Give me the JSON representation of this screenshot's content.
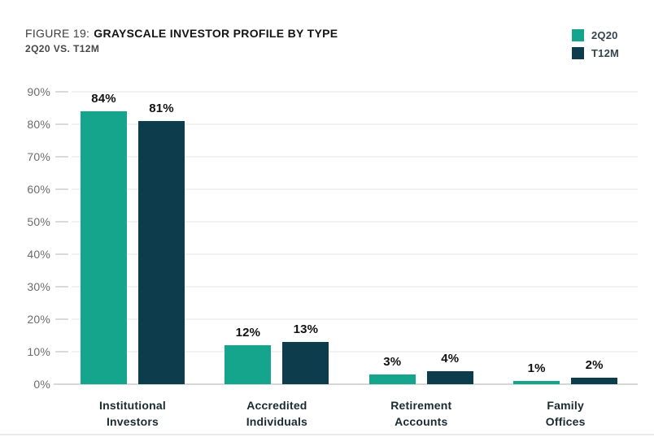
{
  "figure": {
    "label": "FIGURE 19:",
    "title": "GRAYSCALE INVESTOR PROFILE BY TYPE",
    "subtitle": "2Q20 VS. T12M"
  },
  "colors": {
    "series_2q20": "#15a48c",
    "series_t12m": "#0d3c4c",
    "gridline": "#f2f2f2",
    "axis_line": "#d7d7d7",
    "tick_label": "#6b6b6b",
    "value_label": "#121212",
    "category_label": "#1c2a31"
  },
  "chart_data": {
    "type": "bar",
    "title": "FIGURE 19: GRAYSCALE INVESTOR PROFILE BY TYPE",
    "subtitle": "2Q20 VS. T12M",
    "categories": [
      "Institutional\nInvestors",
      "Accredited\nIndividuals",
      "Retirement\nAccounts",
      "Family\nOffices"
    ],
    "series": [
      {
        "name": "2Q20",
        "color": "#15a48c",
        "values": [
          84,
          12,
          3,
          1
        ]
      },
      {
        "name": "T12M",
        "color": "#0d3c4c",
        "values": [
          81,
          13,
          4,
          2
        ]
      }
    ],
    "unit": "%",
    "ylim": [
      0,
      90
    ],
    "yticks": [
      0,
      10,
      20,
      30,
      40,
      50,
      60,
      70,
      80,
      90
    ],
    "grid": true,
    "legend_position": "top-right",
    "value_labels": true
  }
}
